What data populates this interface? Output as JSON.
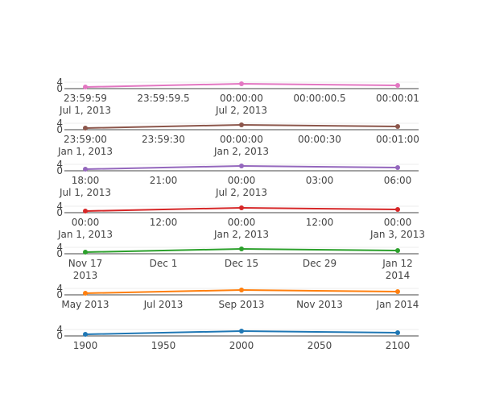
{
  "chart_data": [
    {
      "type": "line",
      "color": "#e377c2",
      "x": [
        "2013-07-01 23:59:59",
        "2013-07-02 00:00:00",
        "2013-07-02 00:00:01"
      ],
      "y": [
        1,
        3,
        2
      ],
      "ylim": [
        0,
        4
      ],
      "yticks": [
        "0",
        "4"
      ],
      "xticks": [
        {
          "label": "23:59:59",
          "sub": "Jul 1, 2013"
        },
        {
          "label": "23:59:59.5",
          "sub": ""
        },
        {
          "label": "00:00:00",
          "sub": "Jul 2, 2013"
        },
        {
          "label": "00:00:00.5",
          "sub": ""
        },
        {
          "label": "00:00:01",
          "sub": ""
        }
      ]
    },
    {
      "type": "line",
      "color": "#8c564b",
      "x": [
        "2013-01-01 23:59:00",
        "2013-01-02 00:00:00",
        "2013-01-02 00:01:00"
      ],
      "y": [
        1,
        3,
        2
      ],
      "ylim": [
        0,
        4
      ],
      "yticks": [
        "0",
        "4"
      ],
      "xticks": [
        {
          "label": "23:59:00",
          "sub": "Jan 1, 2013"
        },
        {
          "label": "23:59:30",
          "sub": ""
        },
        {
          "label": "00:00:00",
          "sub": "Jan 2, 2013"
        },
        {
          "label": "00:00:30",
          "sub": ""
        },
        {
          "label": "00:01:00",
          "sub": ""
        }
      ]
    },
    {
      "type": "line",
      "color": "#9467bd",
      "x": [
        "2013-07-01 18:00",
        "2013-07-02 00:00",
        "2013-07-02 06:00"
      ],
      "y": [
        1,
        3,
        2
      ],
      "ylim": [
        0,
        4
      ],
      "yticks": [
        "0",
        "4"
      ],
      "xticks": [
        {
          "label": "18:00",
          "sub": "Jul 1, 2013"
        },
        {
          "label": "21:00",
          "sub": ""
        },
        {
          "label": "00:00",
          "sub": "Jul 2, 2013"
        },
        {
          "label": "03:00",
          "sub": ""
        },
        {
          "label": "06:00",
          "sub": ""
        }
      ]
    },
    {
      "type": "line",
      "color": "#d62728",
      "x": [
        "2013-01-01 00:00",
        "2013-01-02 00:00",
        "2013-01-03 00:00"
      ],
      "y": [
        1,
        3,
        2
      ],
      "ylim": [
        0,
        4
      ],
      "yticks": [
        "0",
        "4"
      ],
      "xticks": [
        {
          "label": "00:00",
          "sub": "Jan 1, 2013"
        },
        {
          "label": "12:00",
          "sub": ""
        },
        {
          "label": "00:00",
          "sub": "Jan 2, 2013"
        },
        {
          "label": "12:00",
          "sub": ""
        },
        {
          "label": "00:00",
          "sub": "Jan 3, 2013"
        }
      ]
    },
    {
      "type": "line",
      "color": "#2ca02c",
      "x": [
        "2013-11-17",
        "2013-12-15",
        "2014-01-12"
      ],
      "y": [
        1,
        3,
        2
      ],
      "ylim": [
        0,
        4
      ],
      "yticks": [
        "0",
        "4"
      ],
      "xticks": [
        {
          "label": "Nov 17",
          "sub": "2013"
        },
        {
          "label": "Dec 1",
          "sub": ""
        },
        {
          "label": "Dec 15",
          "sub": ""
        },
        {
          "label": "Dec 29",
          "sub": ""
        },
        {
          "label": "Jan 12",
          "sub": "2014"
        }
      ]
    },
    {
      "type": "line",
      "color": "#ff7f0e",
      "x": [
        "2013-05",
        "2013-09",
        "2014-01"
      ],
      "y": [
        1,
        3,
        2
      ],
      "ylim": [
        0,
        4
      ],
      "yticks": [
        "0",
        "4"
      ],
      "xticks": [
        {
          "label": "May 2013",
          "sub": ""
        },
        {
          "label": "Jul 2013",
          "sub": ""
        },
        {
          "label": "Sep 2013",
          "sub": ""
        },
        {
          "label": "Nov 2013",
          "sub": ""
        },
        {
          "label": "Jan 2014",
          "sub": ""
        }
      ]
    },
    {
      "type": "line",
      "color": "#1f77b4",
      "x": [
        1900,
        2000,
        2100
      ],
      "y": [
        1,
        3,
        2
      ],
      "ylim": [
        0,
        4
      ],
      "yticks": [
        "0",
        "4"
      ],
      "xticks": [
        {
          "label": "1900",
          "sub": ""
        },
        {
          "label": "1950",
          "sub": ""
        },
        {
          "label": "2000",
          "sub": ""
        },
        {
          "label": "2050",
          "sub": ""
        },
        {
          "label": "2100",
          "sub": ""
        }
      ]
    }
  ]
}
